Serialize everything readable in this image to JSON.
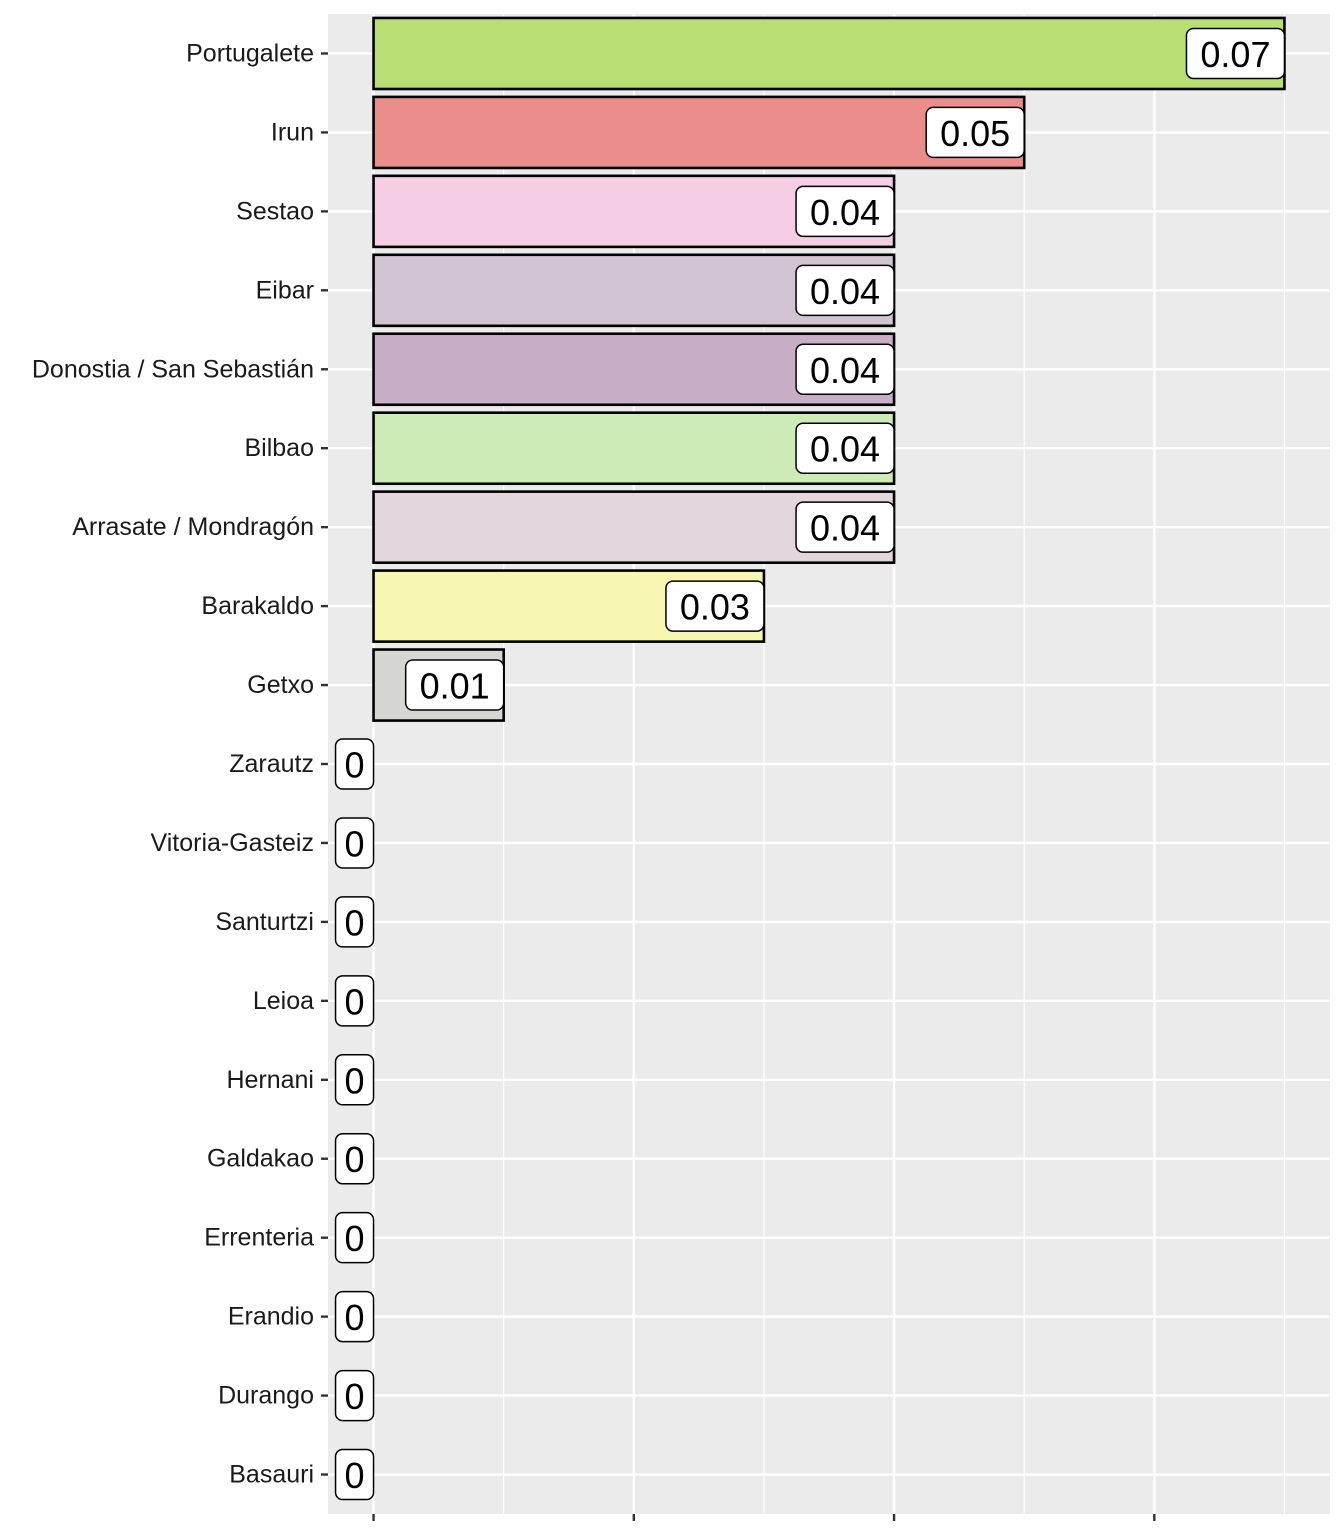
{
  "chart_data": {
    "type": "bar",
    "orientation": "horizontal",
    "title": "",
    "xlabel": "",
    "ylabel": "",
    "xlim": [
      -0.0035,
      0.0735
    ],
    "grid": true,
    "categories": [
      "Portugalete",
      "Irun",
      "Sestao",
      "Eibar",
      "Donostia / San Sebastián",
      "Bilbao",
      "Arrasate / Mondragón",
      "Barakaldo",
      "Getxo",
      "Zarautz",
      "Vitoria-Gasteiz",
      "Santurtzi",
      "Leioa",
      "Hernani",
      "Galdakao",
      "Errenteria",
      "Erandio",
      "Durango",
      "Basauri"
    ],
    "values": [
      0.07,
      0.05,
      0.04,
      0.04,
      0.04,
      0.04,
      0.04,
      0.03,
      0.01,
      0,
      0,
      0,
      0,
      0,
      0,
      0,
      0,
      0,
      0
    ],
    "data_labels": [
      "0.07",
      "0.05",
      "0.04",
      "0.04",
      "0.04",
      "0.04",
      "0.04",
      "0.03",
      "0.01",
      "0",
      "0",
      "0",
      "0",
      "0",
      "0",
      "0",
      "0",
      "0",
      "0"
    ],
    "colors": [
      "#b8de74",
      "#eb8e8b",
      "#f5cde4",
      "#d3c4d4",
      "#c9aec7",
      "#cdebb7",
      "#e3d6dd",
      "#f7f7b2",
      "#d6d6d2",
      "#cccccc",
      "#cccccc",
      "#cccccc",
      "#cccccc",
      "#cccccc",
      "#cccccc",
      "#cccccc",
      "#cccccc",
      "#cccccc",
      "#cccccc"
    ],
    "panel_background": "#ebebeb",
    "grid_color": "#ffffff",
    "bar_outline": "#000000"
  }
}
